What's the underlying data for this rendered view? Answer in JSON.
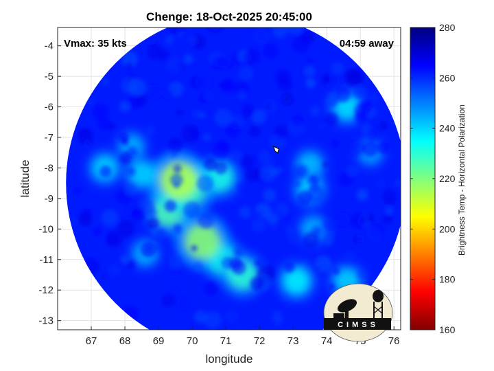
{
  "chart_data": {
    "type": "heatmap",
    "title": "Chenge: 18-Oct-2025 20:45:00",
    "xlabel": "longitude",
    "ylabel": "latitude",
    "xlim": [
      66.0,
      76.2
    ],
    "ylim": [
      -13.3,
      -3.4
    ],
    "x_ticks": [
      67,
      68,
      69,
      70,
      71,
      72,
      73,
      74,
      75,
      76
    ],
    "y_ticks": [
      -4,
      -5,
      -6,
      -7,
      -8,
      -9,
      -10,
      -11,
      -12,
      -13
    ],
    "grid": true,
    "annotations": {
      "vmax": "Vmax: 35 kts",
      "time_away": "04:59 away"
    },
    "colorbar": {
      "label": "Brightness Temp - Horizontal Polarization",
      "min": 160,
      "max": 280,
      "ticks": [
        160,
        180,
        200,
        220,
        240,
        260,
        280
      ],
      "colormap": "jet"
    },
    "swath": {
      "center": [
        71.3,
        -8.5
      ],
      "radius_deg": 5.3,
      "background_value": 262
    },
    "storm_center": [
      72.5,
      -7.4
    ],
    "features": [
      {
        "lon": 69.6,
        "lat": -8.4,
        "value": 214
      },
      {
        "lon": 69.9,
        "lat": -8.7,
        "value": 222
      },
      {
        "lon": 69.3,
        "lat": -9.4,
        "value": 226
      },
      {
        "lon": 70.3,
        "lat": -10.4,
        "value": 218
      },
      {
        "lon": 70.9,
        "lat": -11.0,
        "value": 232
      },
      {
        "lon": 71.5,
        "lat": -11.5,
        "value": 230
      },
      {
        "lon": 70.8,
        "lat": -8.3,
        "value": 232
      },
      {
        "lon": 68.5,
        "lat": -8.2,
        "value": 240
      },
      {
        "lon": 67.4,
        "lat": -8.0,
        "value": 240
      },
      {
        "lon": 68.2,
        "lat": -7.3,
        "value": 244
      },
      {
        "lon": 68.6,
        "lat": -10.8,
        "value": 244
      },
      {
        "lon": 73.1,
        "lat": -11.7,
        "value": 236
      },
      {
        "lon": 74.6,
        "lat": -11.7,
        "value": 240
      },
      {
        "lon": 74.6,
        "lat": -6.0,
        "value": 238
      },
      {
        "lon": 73.6,
        "lat": -10.0,
        "value": 244
      },
      {
        "lon": 73.5,
        "lat": -7.9,
        "value": 242
      },
      {
        "lon": 73.5,
        "lat": -8.7,
        "value": 240
      },
      {
        "lon": 75.3,
        "lat": -7.5,
        "value": 246
      }
    ]
  },
  "logo": {
    "text": "CIMSS"
  }
}
